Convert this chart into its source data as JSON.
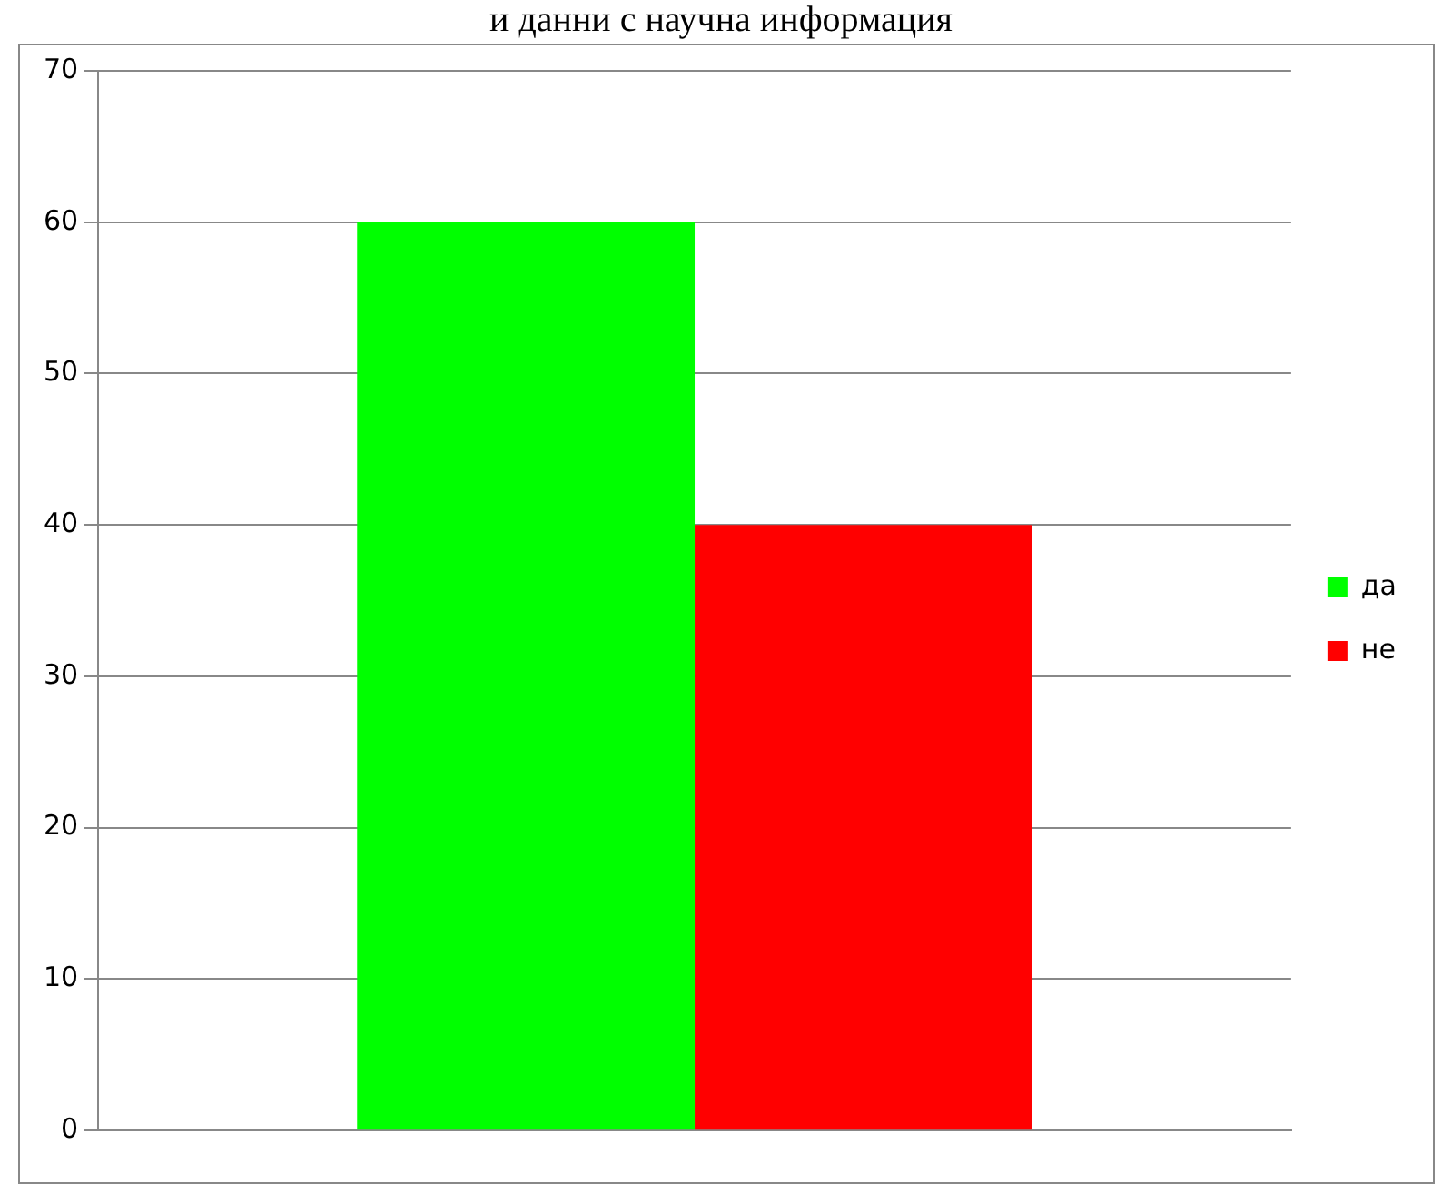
{
  "chart_data": {
    "type": "bar",
    "title": "и данни с научна информация",
    "categories": [
      null
    ],
    "series": [
      {
        "name": "да",
        "color": "#00ff00",
        "values": [
          60
        ]
      },
      {
        "name": "не",
        "color": "#ff0000",
        "values": [
          40
        ]
      }
    ],
    "ylim": [
      0,
      70
    ],
    "yticks": [
      0,
      10,
      20,
      30,
      40,
      50,
      60,
      70
    ],
    "grid": "y",
    "legend": "right"
  }
}
